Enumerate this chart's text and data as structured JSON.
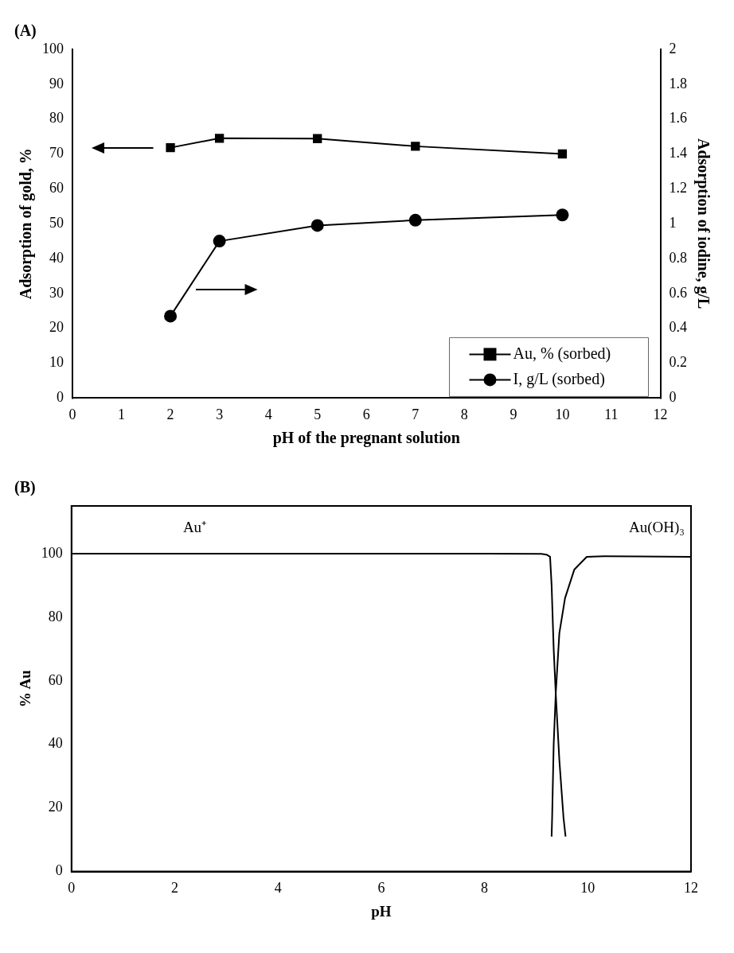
{
  "chart_data": [
    {
      "type": "line",
      "title": "(A)",
      "xlabel": "pH of the pregnant solution",
      "ylabel": "Adsorption of gold, %",
      "y2label": "Adsorption of iodine, g/L",
      "x": [
        2,
        3,
        5,
        7,
        10
      ],
      "series": [
        {
          "name": "Au, % (sorbed)",
          "color": "#000000",
          "marker": "square",
          "values": [
            71.8,
            74.5,
            74.4,
            72.2,
            70.0
          ]
        },
        {
          "name": "I, g/L (sorbed)",
          "color": "#000000",
          "marker": "circle",
          "axis": "y2",
          "values": [
            0.47,
            0.9,
            0.99,
            1.02,
            1.05
          ]
        }
      ],
      "xlim": [
        0,
        12
      ],
      "xticks": [
        0,
        1,
        2,
        3,
        4,
        5,
        6,
        7,
        8,
        9,
        10,
        11,
        12
      ],
      "ylim": [
        0,
        100
      ],
      "yticks": [
        0,
        10,
        20,
        30,
        40,
        50,
        60,
        70,
        80,
        90,
        100
      ],
      "y2lim": [
        0,
        2
      ],
      "y2ticks": [
        0,
        0.2,
        0.4,
        0.6,
        0.8,
        1,
        1.2,
        1.4,
        1.6,
        1.8,
        2
      ],
      "legend": "bottom right"
    },
    {
      "type": "line",
      "title": "(B)",
      "xlabel": "pH",
      "ylabel": "% Au",
      "series": [
        {
          "name": "Au⁺",
          "color": "#000000",
          "x": [
            0,
            4,
            8,
            9.1,
            9.2,
            9.27,
            9.3,
            9.34,
            9.38,
            9.45,
            9.53,
            9.57
          ],
          "values": [
            100,
            100,
            100,
            99.9,
            99.7,
            99,
            90,
            70,
            56,
            35,
            17,
            11
          ]
        },
        {
          "name": "Au(OH)₃",
          "color": "#000000",
          "x": [
            9.3,
            9.31,
            9.34,
            9.38,
            9.45,
            9.56,
            9.74,
            9.98,
            10.3,
            11,
            12
          ],
          "values": [
            11,
            17,
            40,
            56,
            75,
            86,
            95,
            99,
            99.2,
            99.1,
            99
          ]
        }
      ],
      "xlim": [
        0,
        12
      ],
      "xticks": [
        0,
        2,
        4,
        6,
        8,
        10,
        12
      ],
      "ylim": [
        0,
        115
      ],
      "yticks": [
        0,
        20,
        40,
        60,
        80,
        100
      ]
    }
  ]
}
